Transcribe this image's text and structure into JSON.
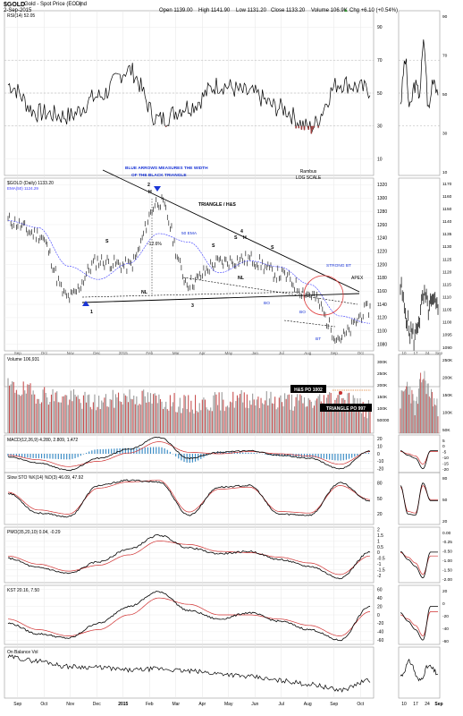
{
  "header": {
    "symbol": "$GOLD",
    "name": "Gold - Spot Price (EOD)",
    "exchange": "ind",
    "date": "2-Sep-2015",
    "open": "Open 1139.00",
    "high": "High 1141.90",
    "low": "Low 1131.20",
    "close": "Close 1133.20",
    "volume": "Volume 106.9K",
    "chg": "Chg +6.10 (+0.54%)",
    "chg_arrow": "▲"
  },
  "x_axis": {
    "main_months": [
      "Sep",
      "Oct",
      "Nov",
      "Dec",
      "2015",
      "Feb",
      "Mar",
      "Apr",
      "May",
      "Jun",
      "Jul",
      "Aug",
      "Sep",
      "Oct"
    ],
    "zoom_ticks": [
      "10",
      "17",
      "24",
      "Sep"
    ]
  },
  "chart_data": [
    {
      "type": "line",
      "name": "RSI",
      "label": "RSI(14) 52.05",
      "ylim": [
        0,
        100
      ],
      "yticks": [
        10,
        30,
        50,
        70,
        90
      ],
      "x": [
        "Sep",
        "Oct",
        "Nov",
        "Dec",
        "2015",
        "Feb",
        "Mar",
        "Apr",
        "May",
        "Jun",
        "Jul",
        "Aug",
        "Sep"
      ],
      "values": [
        55,
        38,
        36,
        48,
        64,
        34,
        42,
        55,
        50,
        41,
        29,
        56,
        52
      ],
      "overbought": 70,
      "oversold": 30,
      "zoom_ticks": [
        "90",
        "70",
        "50",
        "30",
        "10"
      ]
    },
    {
      "type": "line",
      "name": "Gold price",
      "label": "$GOLD (Daily) 1133.20",
      "ma_label": "EMA(50) 1124.29",
      "title": "Rambus",
      "subtitle": "LOG SCALE",
      "ylim": [
        1070,
        1330
      ],
      "yticks": [
        1080,
        1100,
        1120,
        1140,
        1160,
        1180,
        1200,
        1220,
        1240,
        1260,
        1280,
        1300,
        1320
      ],
      "x": [
        "Sep",
        "Oct",
        "Nov",
        "Dec",
        "2015",
        "Feb",
        "Mar",
        "Apr",
        "May",
        "Jun",
        "Jul",
        "Aug",
        "Sep"
      ],
      "values": [
        1266,
        1245,
        1150,
        1205,
        1198,
        1295,
        1172,
        1203,
        1208,
        1185,
        1155,
        1090,
        1133
      ],
      "annotations": [
        "BLUE ARROWS MEASURES THE WIDTH",
        "OF THE BLACK TRIANGLE",
        "TRIANGLE / H&S",
        "-12.6%",
        "50 EMA",
        "STRONG BT",
        "APEX",
        "NL",
        "NL",
        "BO",
        "BO",
        "BT",
        "H",
        "S",
        "S",
        "H",
        "S",
        "S",
        "1",
        "2",
        "3",
        "4"
      ],
      "zoom_ticks": [
        "1170",
        "1160",
        "1150",
        "1140",
        "1135",
        "1130",
        "1125",
        "1120",
        "1115",
        "1110",
        "1105",
        "1100",
        "1095",
        "1090"
      ]
    },
    {
      "type": "bar",
      "name": "Volume",
      "label": "Volume 106,931",
      "ylim": [
        0,
        320000
      ],
      "yticks": [
        "300K",
        "250K",
        "200K",
        "150K",
        "100K",
        "50000"
      ],
      "values": [
        210000,
        180000,
        160000,
        140000,
        170000,
        150000,
        130000,
        145000,
        160000,
        150000,
        140000,
        170000,
        107000
      ],
      "annotations": [
        "H&S PO 1002",
        "TRIANGLE PO 997"
      ],
      "zoom_ticks": [
        "250K",
        "200K",
        "150K",
        "100K",
        "50K"
      ]
    },
    {
      "type": "line",
      "name": "MACD",
      "label": "MACD(12,26,9) 4.280, 2.809, 1.472",
      "ylim": [
        -25,
        25
      ],
      "yticks": [
        -20,
        -10,
        0,
        10,
        20
      ],
      "x": [
        "Sep",
        "Oct",
        "Nov",
        "Dec",
        "2015",
        "Feb",
        "Mar",
        "Apr",
        "May",
        "Jun",
        "Jul",
        "Aug",
        "Sep"
      ],
      "macd": [
        -4,
        -12,
        -22,
        -6,
        6,
        22,
        -6,
        2,
        4,
        -2,
        -6,
        -20,
        4
      ],
      "signal": [
        -2,
        -8,
        -17,
        -10,
        1,
        16,
        2,
        0,
        3,
        0,
        -3,
        -14,
        3
      ],
      "zoom_ticks": [
        "5",
        "0",
        "-5",
        "-10",
        "-15",
        "-20"
      ]
    },
    {
      "type": "line",
      "name": "Slow STO",
      "label": "Slow STO %K(14) %D(3) 46.09, 47.92",
      "ylim": [
        0,
        100
      ],
      "yticks": [
        20,
        50,
        80
      ],
      "x": [
        "Sep",
        "Oct",
        "Nov",
        "Dec",
        "2015",
        "Feb",
        "Mar",
        "Apr",
        "May",
        "Jun",
        "Jul",
        "Aug",
        "Sep"
      ],
      "k": [
        60,
        22,
        15,
        75,
        85,
        82,
        18,
        72,
        75,
        20,
        18,
        80,
        46
      ],
      "d": [
        62,
        28,
        20,
        70,
        82,
        85,
        24,
        68,
        72,
        25,
        22,
        75,
        48
      ],
      "zoom_ticks": [
        "80",
        "50",
        "20"
      ]
    },
    {
      "type": "line",
      "name": "PMO",
      "label": "PMO(35,20,10) 0.04, -0.29",
      "ylim": [
        -2.6,
        2.2
      ],
      "yticks": [
        -2.0,
        -1.5,
        -1.0,
        -0.5,
        0.0,
        0.5,
        1.0,
        1.5,
        2.0
      ],
      "x": [
        "Sep",
        "Oct",
        "Nov",
        "Dec",
        "2015",
        "Feb",
        "Mar",
        "Apr",
        "May",
        "Jun",
        "Jul",
        "Aug",
        "Sep"
      ],
      "pmo": [
        -0.5,
        -1.3,
        -1.8,
        -0.8,
        0.3,
        1.5,
        0.4,
        -0.1,
        0.1,
        -0.6,
        -1.2,
        -2.2,
        0.04
      ],
      "signal": [
        -0.3,
        -1.0,
        -1.6,
        -1.1,
        -0.2,
        1.0,
        0.7,
        0.1,
        0.0,
        -0.4,
        -0.9,
        -1.9,
        -0.29
      ],
      "zoom_ticks": [
        "0.00",
        "-0.25",
        "-0.50",
        "-1.00",
        "-1.50",
        "-2.00"
      ]
    },
    {
      "type": "line",
      "name": "KST",
      "label": "KST 20.16, 7.50",
      "ylim": [
        -70,
        70
      ],
      "yticks": [
        -60,
        -40,
        -20,
        0,
        20,
        40,
        60
      ],
      "x": [
        "Sep",
        "Oct",
        "Nov",
        "Dec",
        "2015",
        "Feb",
        "Mar",
        "Apr",
        "May",
        "Jun",
        "Jul",
        "Aug",
        "Sep"
      ],
      "kst": [
        -20,
        -45,
        -55,
        -20,
        20,
        55,
        10,
        -10,
        5,
        -15,
        -35,
        -60,
        20
      ],
      "signal": [
        -10,
        -35,
        -50,
        -35,
        0,
        40,
        25,
        0,
        0,
        -10,
        -25,
        -50,
        7.5
      ],
      "zoom_ticks": [
        "20",
        "0",
        "-20",
        "-40",
        "-60"
      ]
    },
    {
      "type": "line",
      "name": "On Balance Volume",
      "label": "On Balance Vol",
      "x": [
        "Sep",
        "Oct",
        "Nov",
        "Dec",
        "2015",
        "Feb",
        "Mar",
        "Apr",
        "May",
        "Jun",
        "Jul",
        "Aug",
        "Sep"
      ],
      "values": [
        80,
        72,
        60,
        58,
        52,
        55,
        50,
        45,
        38,
        30,
        22,
        10,
        30
      ]
    }
  ]
}
